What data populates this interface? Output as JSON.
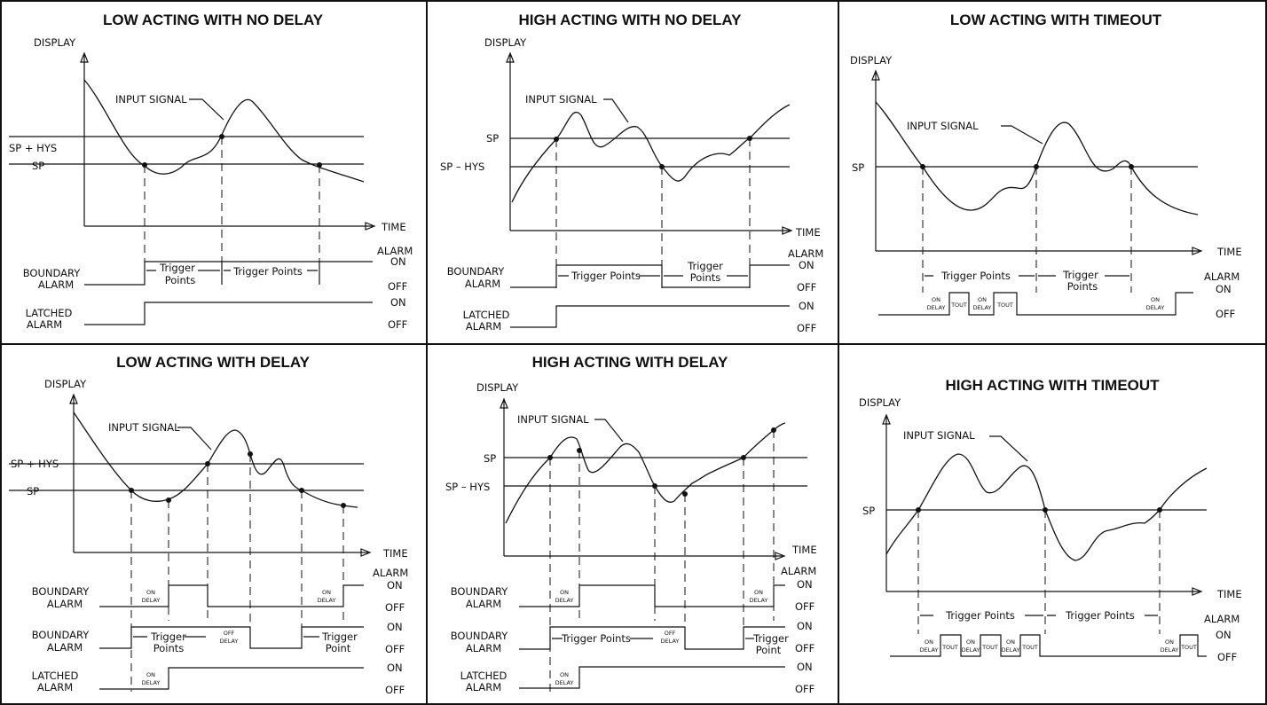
{
  "panels": [
    {
      "title": "LOW ACTING WITH NO DELAY",
      "axis_label": "DISPLAY",
      "time_label": "TIME",
      "input_signal_label": "INPUT SIGNAL",
      "levels": [
        "SP + HYS",
        "SP"
      ],
      "alarm_header": "ALARM",
      "rows": [
        {
          "label": [
            "BOUNDARY",
            "ALARM"
          ],
          "on": "ON",
          "off": "OFF"
        },
        {
          "label": [
            "LATCHED",
            "ALARM"
          ],
          "on": "ON",
          "off": "OFF"
        }
      ],
      "annotations": [
        "Trigger",
        "Points",
        "Trigger Points"
      ]
    },
    {
      "title": "HIGH ACTING WITH NO DELAY",
      "axis_label": "DISPLAY",
      "time_label": "TIME",
      "input_signal_label": "INPUT SIGNAL",
      "levels": [
        "SP",
        "SP – HYS"
      ],
      "alarm_header": "ALARM",
      "rows": [
        {
          "label": [
            "BOUNDARY",
            "ALARM"
          ],
          "on": "ON",
          "off": "OFF"
        },
        {
          "label": [
            "LATCHED",
            "ALARM"
          ],
          "on": "ON",
          "off": "OFF"
        }
      ],
      "annotations": [
        "Trigger Points",
        "Trigger",
        "Points"
      ]
    },
    {
      "title": "LOW ACTING WITH TIMEOUT",
      "axis_label": "DISPLAY",
      "time_label": "TIME",
      "input_signal_label": "INPUT SIGNAL",
      "levels": [
        "SP"
      ],
      "alarm_header": "ALARM",
      "rows": [
        {
          "label": [],
          "on": "ON",
          "off": "OFF"
        }
      ],
      "annotations": [
        "Trigger Points",
        "Trigger",
        "Points",
        "ON",
        "DELAY",
        "TOUT"
      ]
    },
    {
      "title": "LOW ACTING WITH DELAY",
      "axis_label": "DISPLAY",
      "time_label": "TIME",
      "input_signal_label": "INPUT SIGNAL",
      "levels": [
        "SP + HYS",
        "SP"
      ],
      "alarm_header": "ALARM",
      "rows": [
        {
          "label": [
            "BOUNDARY",
            "ALARM"
          ],
          "on": "ON",
          "off": "OFF"
        },
        {
          "label": [
            "BOUNDARY",
            "ALARM"
          ],
          "on": "ON",
          "off": "OFF"
        },
        {
          "label": [
            "LATCHED",
            "ALARM"
          ],
          "on": "ON",
          "off": "OFF"
        }
      ],
      "annotations": [
        "ON",
        "DELAY",
        "OFF",
        "Trigger",
        "Points",
        "Point"
      ]
    },
    {
      "title": "HIGH ACTING WITH DELAY",
      "axis_label": "DISPLAY",
      "time_label": "TIME",
      "input_signal_label": "INPUT SIGNAL",
      "levels": [
        "SP",
        "SP – HYS"
      ],
      "alarm_header": "ALARM",
      "rows": [
        {
          "label": [
            "BOUNDARY",
            "ALARM"
          ],
          "on": "ON",
          "off": "OFF"
        },
        {
          "label": [
            "BOUNDARY",
            "ALARM"
          ],
          "on": "ON",
          "off": "OFF"
        },
        {
          "label": [
            "LATCHED",
            "ALARM"
          ],
          "on": "ON",
          "off": "OFF"
        }
      ],
      "annotations": [
        "ON",
        "DELAY",
        "OFF",
        "Trigger Points",
        "Trigger",
        "Point"
      ]
    },
    {
      "title": "HIGH ACTING WITH TIMEOUT",
      "axis_label": "DISPLAY",
      "time_label": "TIME",
      "input_signal_label": "INPUT SIGNAL",
      "levels": [
        "SP"
      ],
      "alarm_header": "ALARM",
      "rows": [
        {
          "label": [],
          "on": "ON",
          "off": "OFF"
        }
      ],
      "annotations": [
        "Trigger Points",
        "ON",
        "DELAY",
        "TOUT"
      ]
    }
  ]
}
